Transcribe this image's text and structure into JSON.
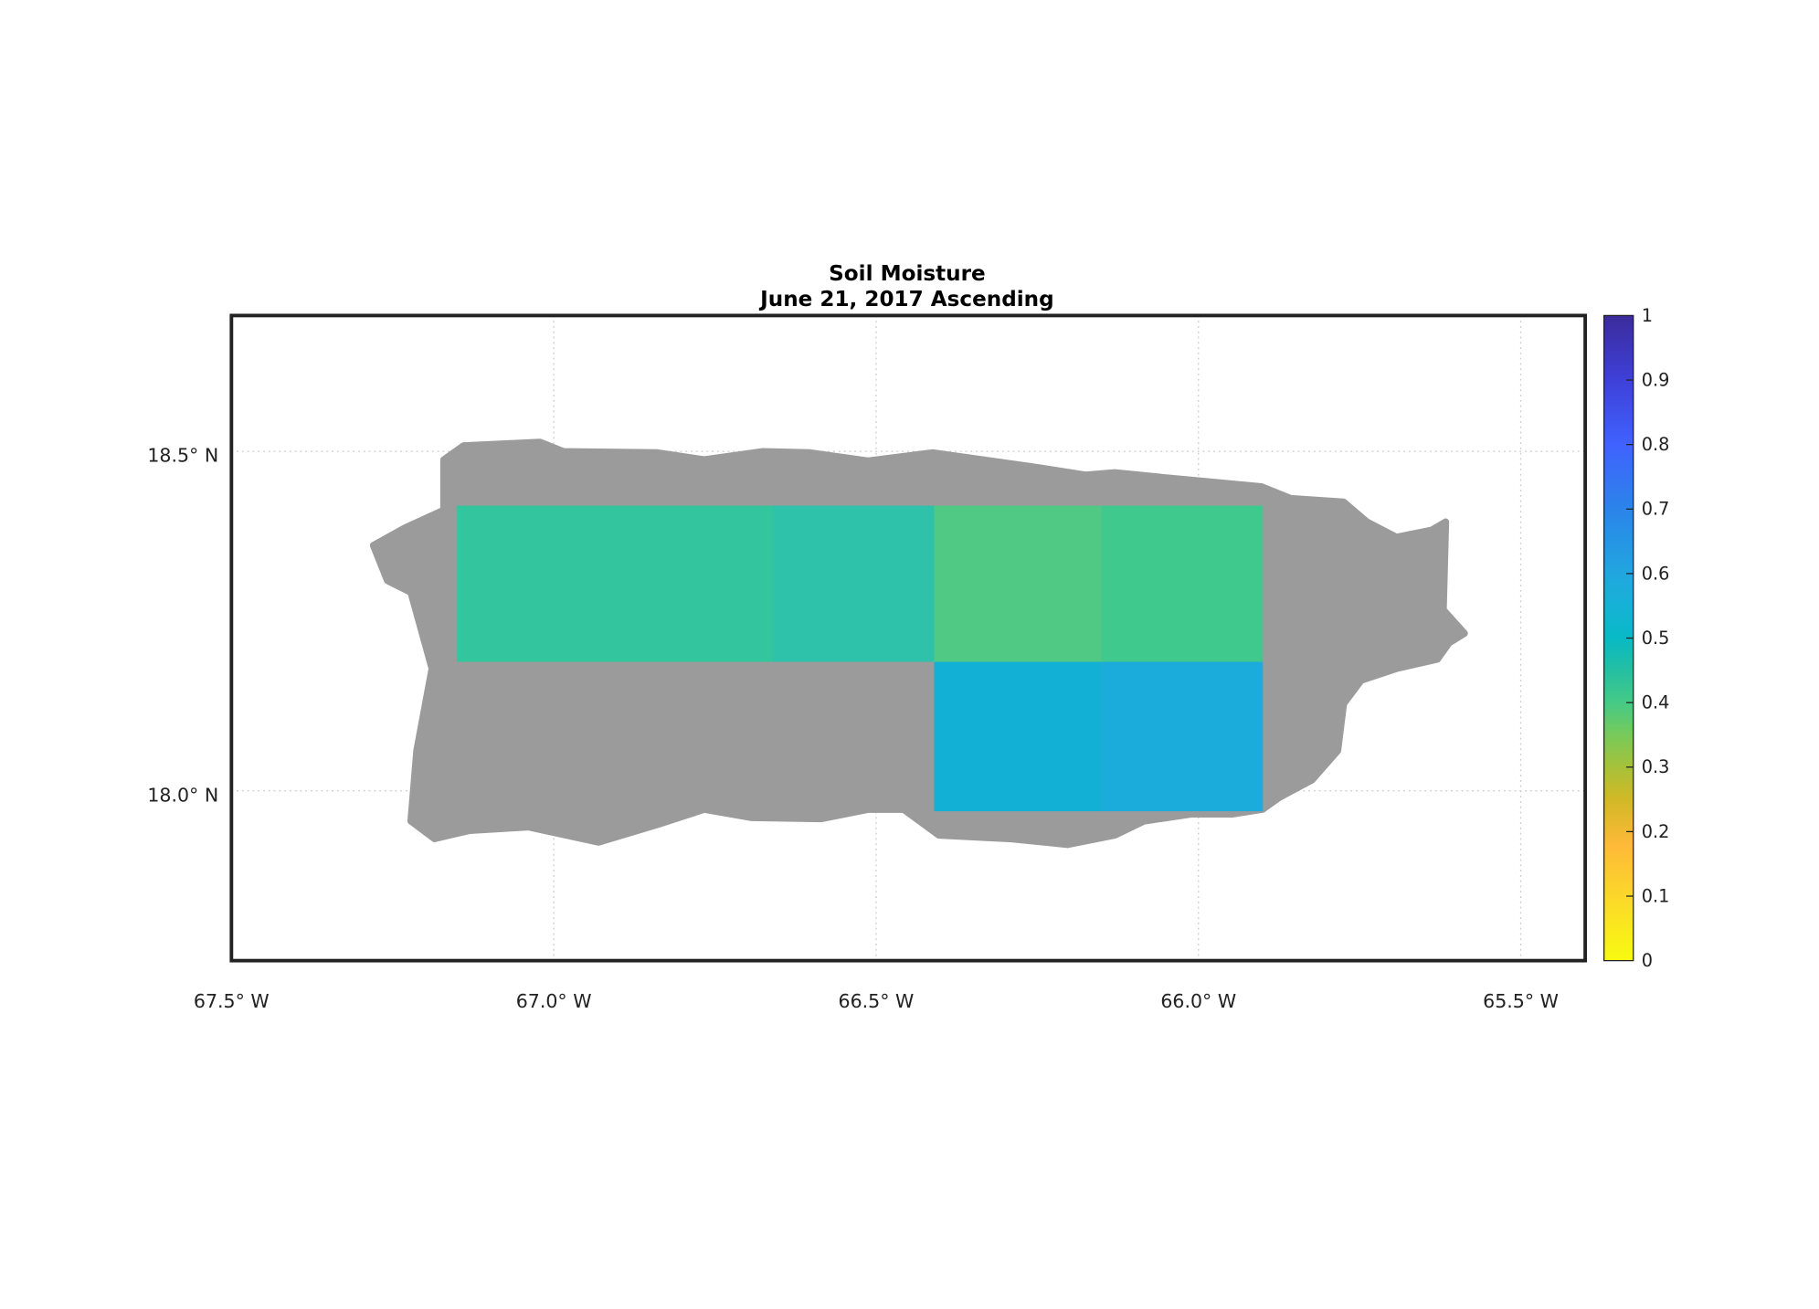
{
  "chart_data": {
    "type": "heatmap",
    "title": "Soil Moisture",
    "subtitle": "June 21, 2017 Ascending",
    "xlim": [
      -67.5,
      -65.4
    ],
    "ylim": [
      17.75,
      18.7
    ],
    "grid": true,
    "x_ticks": [
      {
        "value": -67.5,
        "label": "67.5° W"
      },
      {
        "value": -67.0,
        "label": "67.0° W"
      },
      {
        "value": -66.5,
        "label": "66.5° W"
      },
      {
        "value": -66.0,
        "label": "66.0° W"
      },
      {
        "value": -65.5,
        "label": "65.5° W"
      }
    ],
    "y_ticks": [
      {
        "value": 18.5,
        "label": "18.5° N"
      },
      {
        "value": 18.0,
        "label": "18.0° N"
      }
    ],
    "land_mask_color": "#9b9b9b",
    "cells": [
      {
        "lon": [
          -67.15,
          -66.66
        ],
        "lat": [
          18.19,
          18.42
        ],
        "value": 0.46,
        "color": "#33c59e"
      },
      {
        "lon": [
          -66.66,
          -66.41
        ],
        "lat": [
          18.19,
          18.42
        ],
        "value": 0.47,
        "color": "#2dc2a9"
      },
      {
        "lon": [
          -66.41,
          -66.15
        ],
        "lat": [
          18.19,
          18.42
        ],
        "value": 0.4,
        "color": "#4fc984"
      },
      {
        "lon": [
          -66.15,
          -65.9
        ],
        "lat": [
          18.19,
          18.42
        ],
        "value": 0.42,
        "color": "#40c98c"
      },
      {
        "lon": [
          -66.41,
          -66.15
        ],
        "lat": [
          17.97,
          18.19
        ],
        "value": 0.57,
        "color": "#13b0d5"
      },
      {
        "lon": [
          -66.15,
          -65.9
        ],
        "lat": [
          17.97,
          18.19
        ],
        "value": 0.59,
        "color": "#1cacdb"
      }
    ],
    "colorbar": {
      "range": [
        0,
        1
      ],
      "ticks": [
        "0",
        "0.1",
        "0.2",
        "0.3",
        "0.4",
        "0.5",
        "0.6",
        "0.7",
        "0.8",
        "0.9",
        "1"
      ],
      "colormap": [
        [
          0,
          "#f8fa10"
        ],
        [
          0.1,
          "#fbd72a"
        ],
        [
          0.18,
          "#feb938"
        ],
        [
          0.25,
          "#d1b925"
        ],
        [
          0.3,
          "#a6c13a"
        ],
        [
          0.35,
          "#77ca5a"
        ],
        [
          0.4,
          "#45ca86"
        ],
        [
          0.45,
          "#24bfa2"
        ],
        [
          0.5,
          "#08b9c5"
        ],
        [
          0.55,
          "#16b2d6"
        ],
        [
          0.6,
          "#21a6df"
        ],
        [
          0.7,
          "#2b84ea"
        ],
        [
          0.8,
          "#4062fe"
        ],
        [
          0.9,
          "#3e40d8"
        ],
        [
          1,
          "#3b2b9c"
        ]
      ]
    }
  }
}
